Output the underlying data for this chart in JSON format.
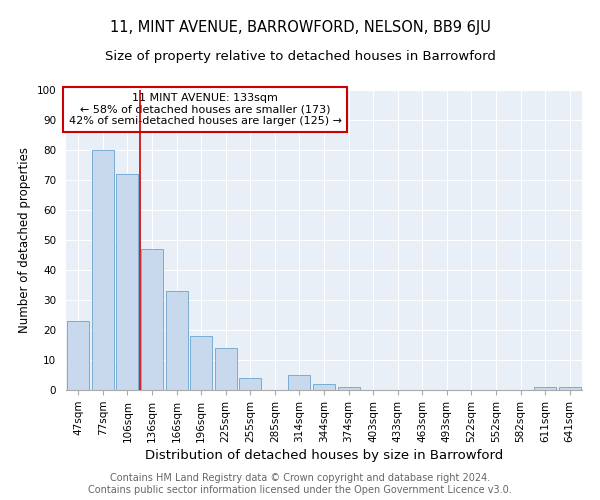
{
  "title": "11, MINT AVENUE, BARROWFORD, NELSON, BB9 6JU",
  "subtitle": "Size of property relative to detached houses in Barrowford",
  "xlabel": "Distribution of detached houses by size in Barrowford",
  "ylabel": "Number of detached properties",
  "categories": [
    "47sqm",
    "77sqm",
    "106sqm",
    "136sqm",
    "166sqm",
    "196sqm",
    "225sqm",
    "255sqm",
    "285sqm",
    "314sqm",
    "344sqm",
    "374sqm",
    "403sqm",
    "433sqm",
    "463sqm",
    "493sqm",
    "522sqm",
    "552sqm",
    "582sqm",
    "611sqm",
    "641sqm"
  ],
  "values": [
    23,
    80,
    72,
    47,
    33,
    18,
    14,
    4,
    0,
    5,
    2,
    1,
    0,
    0,
    0,
    0,
    0,
    0,
    0,
    1,
    1
  ],
  "bar_color": "#c8d9ed",
  "bar_edge_color": "#7aadd4",
  "vline_x_index": 2.5,
  "vline_color": "#cc0000",
  "annotation_line1": "11 MINT AVENUE: 133sqm",
  "annotation_line2": "← 58% of detached houses are smaller (173)",
  "annotation_line3": "42% of semi-detached houses are larger (125) →",
  "annotation_box_color": "#ffffff",
  "annotation_box_edge_color": "#cc0000",
  "ylim": [
    0,
    100
  ],
  "yticks": [
    0,
    10,
    20,
    30,
    40,
    50,
    60,
    70,
    80,
    90,
    100
  ],
  "footer_line1": "Contains HM Land Registry data © Crown copyright and database right 2024.",
  "footer_line2": "Contains public sector information licensed under the Open Government Licence v3.0.",
  "bg_color": "#e8eff7",
  "fig_bg_color": "#ffffff",
  "title_fontsize": 10.5,
  "subtitle_fontsize": 9.5,
  "xlabel_fontsize": 9.5,
  "ylabel_fontsize": 8.5,
  "tick_fontsize": 7.5,
  "footer_fontsize": 7,
  "annotation_fontsize": 8
}
